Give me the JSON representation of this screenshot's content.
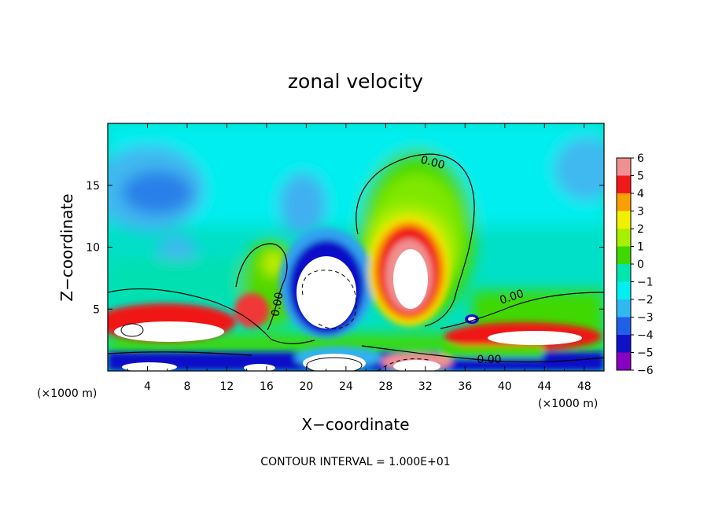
{
  "chart_data": {
    "type": "heatmap",
    "title": "zonal velocity",
    "xlabel": "X−coordinate",
    "ylabel": "Z−coordinate",
    "x_unit_left": "(×1000 m)",
    "x_unit_right": "(×1000 m)",
    "footer": "CONTOUR INTERVAL = 1.000E+01",
    "xlim": [
      0,
      50
    ],
    "ylim": [
      0,
      20
    ],
    "x_ticks": [
      "4",
      "8",
      "12",
      "16",
      "20",
      "24",
      "28",
      "32",
      "36",
      "40",
      "44",
      "48"
    ],
    "y_ticks": [
      "5",
      "10",
      "15"
    ],
    "colorbar_labels": [
      "6",
      "5",
      "4",
      "3",
      "2",
      "1",
      "0",
      "−1",
      "−2",
      "−3",
      "−4",
      "−5",
      "−6"
    ],
    "contour_labels": [
      "0.00",
      "0.00",
      "0.00",
      "0.00"
    ],
    "colors": {
      "white": "#ffffff",
      "pink": "#f09090",
      "red": "#f01818",
      "orange": "#f8a000",
      "yellow": "#f0f000",
      "lime": "#a8f000",
      "green": "#40d800",
      "teal": "#00e6b0",
      "cyan": "#00f0f0",
      "skyblue": "#30b8f0",
      "blue": "#2060e8",
      "navy": "#1010c8",
      "purple": "#8800c0"
    }
  }
}
